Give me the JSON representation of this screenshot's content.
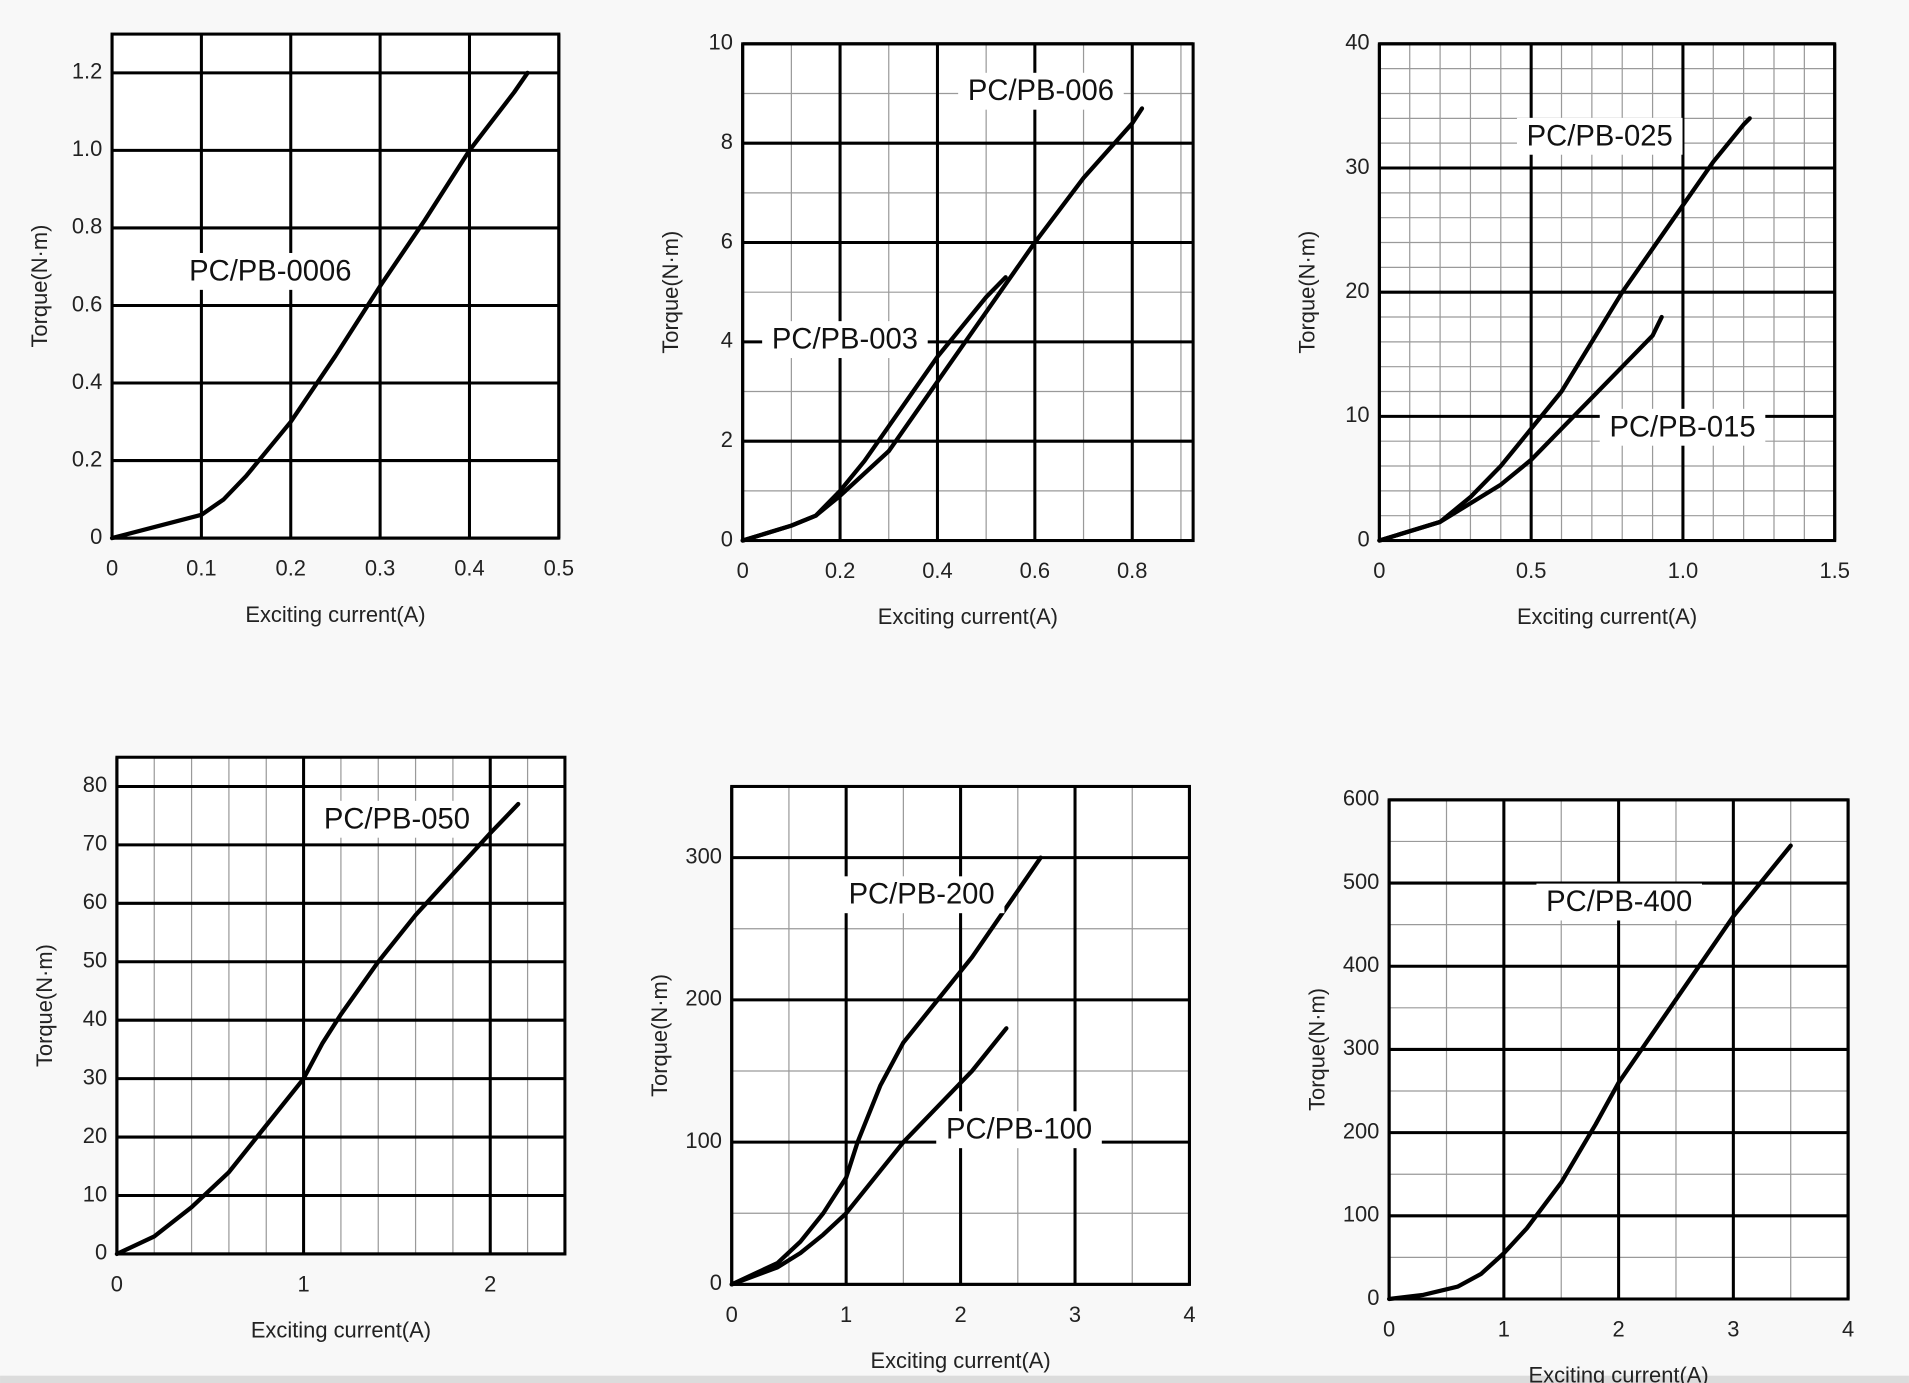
{
  "chart_data": [
    {
      "type": "line",
      "xlabel": "Exciting current(A)",
      "ylabel": "Torque(N·m)",
      "xlim": [
        0,
        0.5
      ],
      "ylim": [
        0,
        1.3
      ],
      "xticks": [
        0,
        0.1,
        0.2,
        0.3,
        0.4,
        0.5
      ],
      "yticks": [
        0,
        0.2,
        0.4,
        0.6,
        0.8,
        {
          "value": 1,
          "label": "1.0"
        },
        1.2
      ],
      "grid": true,
      "series": [
        {
          "name": "PC/PB-0006",
          "color": "#000000",
          "x": [
            0,
            0.05,
            0.1,
            0.125,
            0.15,
            0.2,
            0.25,
            0.3,
            0.35,
            0.4,
            0.45,
            0.465
          ],
          "values": [
            0,
            0.03,
            0.06,
            0.1,
            0.16,
            0.3,
            0.47,
            0.65,
            0.82,
            1.0,
            1.15,
            1.2
          ]
        }
      ]
    },
    {
      "type": "line",
      "xlabel": "Exciting current(A)",
      "ylabel": "Torque(N·m)",
      "xlim": [
        0,
        0.925
      ],
      "ylim": [
        0,
        10
      ],
      "xticks": [
        0,
        0.2,
        0.4,
        0.6,
        0.8
      ],
      "yticks": [
        0,
        2,
        4,
        6,
        8,
        10
      ],
      "grid": true,
      "minor_grid_x": 0.1,
      "minor_grid_y": 1,
      "series": [
        {
          "name": "PC/PB-006",
          "color": "#000000",
          "x": [
            0,
            0.1,
            0.15,
            0.2,
            0.3,
            0.4,
            0.5,
            0.6,
            0.7,
            0.8,
            0.82
          ],
          "values": [
            0,
            0.3,
            0.5,
            0.9,
            1.8,
            3.2,
            4.6,
            6.0,
            7.3,
            8.4,
            8.7
          ]
        },
        {
          "name": "PC/PB-003",
          "color": "#000000",
          "x": [
            0,
            0.1,
            0.15,
            0.2,
            0.25,
            0.3,
            0.35,
            0.4,
            0.45,
            0.5,
            0.54
          ],
          "values": [
            0,
            0.3,
            0.5,
            1.0,
            1.6,
            2.3,
            3.0,
            3.7,
            4.3,
            4.9,
            5.3
          ]
        }
      ]
    },
    {
      "type": "line",
      "xlabel": "Exciting current(A)",
      "ylabel": "Torque(N·m)",
      "xlim": [
        0,
        1.5
      ],
      "ylim": [
        0,
        40
      ],
      "xticks": [
        0,
        0.5,
        {
          "value": 1,
          "label": "1.0"
        },
        1.5
      ],
      "yticks": [
        0,
        10,
        20,
        30,
        40
      ],
      "grid": true,
      "minor_grid_x": 0.1,
      "minor_grid_y": 2,
      "series": [
        {
          "name": "PC/PB-025",
          "color": "#000000",
          "x": [
            0,
            0.2,
            0.3,
            0.4,
            0.5,
            0.6,
            0.7,
            0.8,
            0.9,
            1.0,
            1.1,
            1.2,
            1.22
          ],
          "values": [
            0,
            1.5,
            3.5,
            6,
            9,
            12,
            16,
            20,
            23.5,
            27,
            30.5,
            33.5,
            34
          ]
        },
        {
          "name": "PC/PB-015",
          "color": "#000000",
          "x": [
            0,
            0.2,
            0.3,
            0.4,
            0.5,
            0.6,
            0.7,
            0.8,
            0.9,
            0.93
          ],
          "values": [
            0,
            1.5,
            3,
            4.5,
            6.5,
            9,
            11.5,
            14,
            16.5,
            18
          ]
        }
      ]
    },
    {
      "type": "line",
      "xlabel": "Exciting current(A)",
      "ylabel": "Torque(N·m)",
      "xlim": [
        0,
        2.4
      ],
      "ylim": [
        0,
        85
      ],
      "xticks": [
        0,
        1,
        2
      ],
      "yticks": [
        0,
        10,
        20,
        30,
        40,
        50,
        60,
        70,
        80
      ],
      "grid": true,
      "minor_grid_x": 0.2,
      "series": [
        {
          "name": "PC/PB-050",
          "color": "#000000",
          "x": [
            0,
            0.2,
            0.4,
            0.6,
            0.8,
            1.0,
            1.1,
            1.2,
            1.4,
            1.6,
            1.8,
            2.0,
            2.15
          ],
          "values": [
            0,
            3,
            8,
            14,
            22,
            30,
            36,
            41,
            50,
            58,
            65,
            72,
            77
          ]
        }
      ]
    },
    {
      "type": "line",
      "xlabel": "Exciting current(A)",
      "ylabel": "Torque(N·m)",
      "xlim": [
        0,
        4
      ],
      "ylim": [
        0,
        350
      ],
      "xticks": [
        0,
        1,
        2,
        3,
        4
      ],
      "yticks": [
        0,
        100,
        200,
        300
      ],
      "grid": true,
      "minor_grid_x": 0.5,
      "minor_grid_y": 50,
      "series": [
        {
          "name": "PC/PB-200",
          "color": "#000000",
          "x": [
            0,
            0.4,
            0.6,
            0.8,
            1.0,
            1.1,
            1.3,
            1.5,
            1.8,
            2.1,
            2.4,
            2.7
          ],
          "values": [
            0,
            15,
            30,
            50,
            75,
            100,
            140,
            170,
            200,
            230,
            265,
            300
          ]
        },
        {
          "name": "PC/PB-100",
          "color": "#000000",
          "x": [
            0,
            0.4,
            0.6,
            0.8,
            1.0,
            1.1,
            1.3,
            1.5,
            1.8,
            2.1,
            2.4
          ],
          "values": [
            0,
            12,
            22,
            35,
            50,
            60,
            80,
            100,
            125,
            150,
            180
          ]
        }
      ]
    },
    {
      "type": "line",
      "xlabel": "Exciting current(A)",
      "ylabel": "Torque(N·m)",
      "xlim": [
        0,
        4
      ],
      "ylim": [
        0,
        600
      ],
      "xticks": [
        0,
        1,
        2,
        3,
        4
      ],
      "yticks": [
        0,
        100,
        200,
        300,
        400,
        500,
        600
      ],
      "grid": true,
      "minor_grid_x": 0.5,
      "minor_grid_y": 50,
      "series": [
        {
          "name": "PC/PB-400",
          "color": "#000000",
          "x": [
            0,
            0.3,
            0.6,
            0.8,
            1.0,
            1.2,
            1.5,
            1.8,
            2.0,
            2.5,
            3.0,
            3.5
          ],
          "values": [
            0,
            5,
            15,
            30,
            55,
            85,
            140,
            210,
            260,
            360,
            460,
            545
          ]
        }
      ]
    }
  ]
}
